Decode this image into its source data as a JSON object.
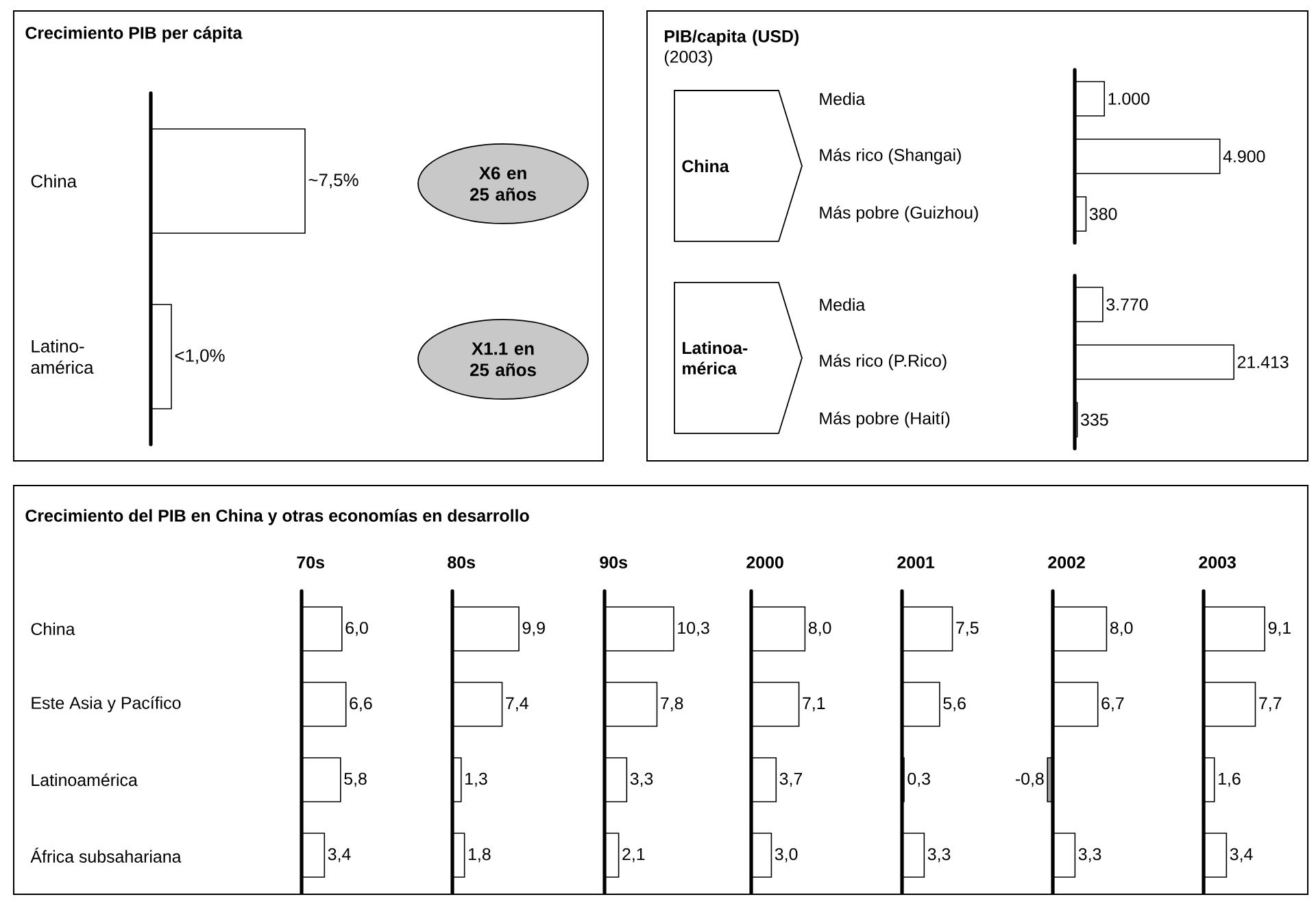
{
  "chart_data": [
    {
      "type": "bar",
      "orientation": "horizontal",
      "title": "Crecimiento PIB per cápita",
      "categories": [
        "China",
        "Latino-américa"
      ],
      "values": [
        7.5,
        1.0
      ],
      "value_labels": [
        "~7,5%",
        "<1,0%"
      ],
      "color": "#ffffff",
      "tick_labels": "y",
      "annotations": [
        "X6 en 25 años",
        "X1.1 en 25 años"
      ]
    },
    {
      "type": "bar",
      "orientation": "horizontal",
      "title": "**PIB/capita (USD)** (2003)",
      "categories": [
        "Media",
        "Más rico (Shangai)",
        "Más pobre (Guizhou)"
      ],
      "values": [
        1000,
        4900,
        380
      ],
      "value_labels": [
        "1.000",
        "4.900",
        "380"
      ],
      "color": "#ffffff",
      "tick_labels": "y",
      "annotations": [
        "China"
      ]
    },
    {
      "type": "bar",
      "orientation": "horizontal",
      "categories": [
        "Media",
        "Más rico (P.Rico)",
        "Más pobre (Haití)"
      ],
      "values": [
        3770,
        21413,
        335
      ],
      "value_labels": [
        "3.770",
        "21.413",
        "335"
      ],
      "color": "#ffffff",
      "tick_labels": "y",
      "annotations": [
        "Latinoa-mérica"
      ]
    },
    {
      "type": "bar",
      "orientation": "horizontal",
      "title": "Crecimiento del PIB en China y otras economías en desarrollo",
      "subtitle": "70s",
      "categories": [
        "China",
        "Este Asia y Pacífico",
        "Latinoamérica",
        "África subsahariana"
      ],
      "values": [
        6.0,
        6.6,
        5.8,
        3.4
      ],
      "value_labels": [
        "6,0",
        "6,6",
        "5,8",
        "3,4"
      ],
      "color": "#ffffff",
      "tick_labels": "y"
    },
    {
      "type": "bar",
      "orientation": "horizontal",
      "subtitle": "80s",
      "categories": [
        null,
        null,
        null,
        null
      ],
      "values": [
        9.9,
        7.4,
        1.3,
        1.8
      ],
      "value_labels": [
        "9,9",
        "7,4",
        "1,3",
        "1,8"
      ],
      "color": "#ffffff"
    },
    {
      "type": "bar",
      "orientation": "horizontal",
      "subtitle": "90s",
      "categories": [
        null,
        null,
        null,
        null
      ],
      "values": [
        10.3,
        7.8,
        3.3,
        2.1
      ],
      "value_labels": [
        "10,3",
        "7,8",
        "3,3",
        "2,1"
      ],
      "color": "#ffffff"
    },
    {
      "type": "bar",
      "orientation": "horizontal",
      "subtitle": "2000",
      "categories": [
        null,
        null,
        null,
        null
      ],
      "values": [
        8.0,
        7.1,
        3.7,
        3.0
      ],
      "value_labels": [
        "8,0",
        "7,1",
        "3,7",
        "3,0"
      ],
      "color": "#ffffff"
    },
    {
      "type": "bar",
      "orientation": "horizontal",
      "subtitle": "2001",
      "categories": [
        null,
        null,
        null,
        null
      ],
      "values": [
        7.5,
        5.6,
        0.3,
        3.3
      ],
      "value_labels": [
        "7,5",
        "5,6",
        "0,3",
        "3,3"
      ],
      "color": "#ffffff"
    },
    {
      "type": "bar",
      "orientation": "horizontal",
      "subtitle": "2002",
      "categories": [
        null,
        null,
        null,
        null
      ],
      "values": [
        8.0,
        6.7,
        -0.8,
        3.3
      ],
      "value_labels": [
        "8,0",
        "6,7",
        "-0,8",
        "3,3"
      ],
      "colors": [
        "#ffffff",
        "#ffffff",
        "#a0a0a0",
        "#ffffff"
      ]
    },
    {
      "type": "bar",
      "orientation": "horizontal",
      "subtitle": "2003",
      "categories": [
        null,
        null,
        null,
        null
      ],
      "values": [
        9.1,
        7.7,
        1.6,
        3.4
      ],
      "value_labels": [
        "9,1",
        "7,7",
        "1,6",
        "3,4"
      ],
      "color": "#ffffff"
    }
  ]
}
